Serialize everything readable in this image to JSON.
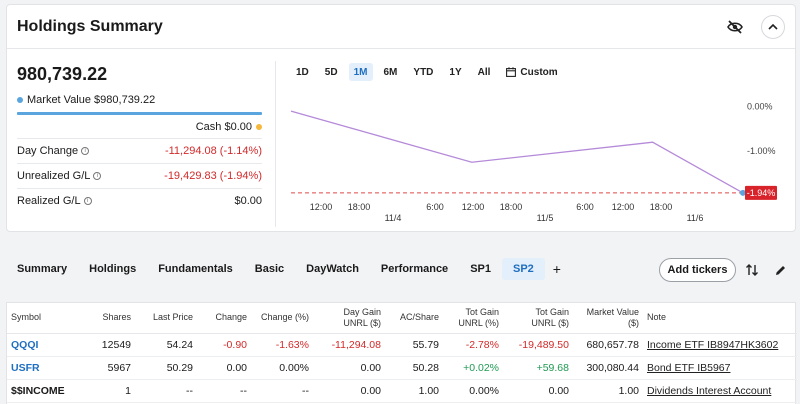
{
  "summary": {
    "title": "Holdings Summary",
    "total_value": "980,739.22",
    "market_value_label": "Market Value $980,739.22",
    "cash_label": "Cash $0.00",
    "stats": [
      {
        "label": "Day Change",
        "value": "-11,294.08 (-1.14%)",
        "tone": "neg"
      },
      {
        "label": "Unrealized G/L",
        "value": "-19,429.83 (-1.94%)",
        "tone": "neg"
      },
      {
        "label": "Realized G/L",
        "value": "$0.00",
        "tone": "plain"
      }
    ],
    "colors": {
      "market_value_dot": "#5aa5de",
      "cash_dot": "#f5b83d",
      "bar": "#5aa5de"
    }
  },
  "ranges": [
    "1D",
    "5D",
    "1M",
    "6M",
    "YTD",
    "1Y",
    "All"
  ],
  "range_active": "1M",
  "range_custom": "Custom",
  "chart_data": {
    "type": "line",
    "y_tick_labels": [
      "0.00%",
      "-1.00%"
    ],
    "ylim": [
      -2.1,
      0.15
    ],
    "x_tick_labels": [
      "12:00",
      "18:00",
      "6:00",
      "12:00",
      "18:00",
      "6:00",
      "12:00",
      "18:00"
    ],
    "day_labels": [
      "11/4",
      "11/5",
      "11/6"
    ],
    "series": [
      {
        "x": [
          0,
          0.4,
          0.8,
          1.0
        ],
        "values": [
          -0.1,
          -1.25,
          -0.8,
          -1.94
        ],
        "color": "#b58ad9"
      }
    ],
    "current_label": "-1.94%",
    "current_value": -1.94,
    "reference_color": "#e04848",
    "label_bg": "#d8232a"
  },
  "tabs": [
    {
      "label": "Summary"
    },
    {
      "label": "Holdings"
    },
    {
      "label": "Fundamentals"
    },
    {
      "label": "Basic"
    },
    {
      "label": "DayWatch"
    },
    {
      "label": "Performance"
    },
    {
      "label": "SP1"
    },
    {
      "label": "SP2"
    }
  ],
  "tab_active": "SP2",
  "tab_add": "+",
  "add_tickers_label": "Add tickers",
  "table": {
    "headers": {
      "symbol": "Symbol",
      "shares": "Shares",
      "last_price": "Last Price",
      "change": "Change",
      "change_pct": "Change (%)",
      "day_gain_1": "Day Gain",
      "day_gain_2": "UNRL ($)",
      "ac_share": "AC/Share",
      "tot_gain_pct_1": "Tot Gain",
      "tot_gain_pct_2": "UNRL (%)",
      "tot_gain_usd_1": "Tot Gain",
      "tot_gain_usd_2": "UNRL ($)",
      "mv_1": "Market Value",
      "mv_2": "($)",
      "note": "Note"
    },
    "rows": [
      {
        "symbol": "QQQI",
        "shares": "12549",
        "last_price": "54.24",
        "change": "-0.90",
        "change_pct": "-1.63%",
        "day_gain": "-11,294.08",
        "ac_share": "55.79",
        "tot_gain_pct": "-2.78%",
        "tot_gain_usd": "-19,489.50",
        "market_value": "680,657.78",
        "note": "Income ETF IB8947HK3602"
      },
      {
        "symbol": "USFR",
        "shares": "5967",
        "last_price": "50.29",
        "change": "0.00",
        "change_pct": "0.00%",
        "day_gain": "0.00",
        "ac_share": "50.28",
        "tot_gain_pct": "+0.02%",
        "tot_gain_usd": "+59.68",
        "market_value": "300,080.44",
        "note": "Bond ETF IB5967"
      },
      {
        "symbol": "$$INCOME",
        "shares": "1",
        "last_price": "--",
        "change": "--",
        "change_pct": "--",
        "day_gain": "0.00",
        "ac_share": "1.00",
        "tot_gain_pct": "0.00%",
        "tot_gain_usd": "0.00",
        "market_value": "1.00",
        "note": "Dividends Interest Account"
      }
    ]
  },
  "icons": {
    "hide": "eye-slash-icon",
    "collapse": "chevron-up-icon",
    "sort": "sort-arrows-icon",
    "edit": "pencil-icon",
    "calendar": "calendar-icon"
  }
}
